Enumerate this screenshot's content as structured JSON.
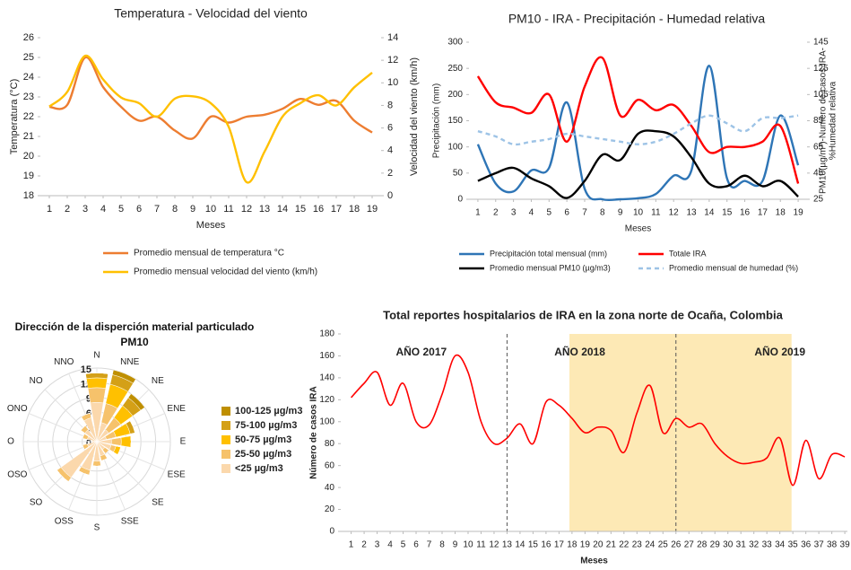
{
  "chart_data": [
    {
      "type": "line",
      "title": "Temperatura - Velocidad del viento",
      "xlabel": "Meses",
      "ylabel": "Temperatura (°C)",
      "y2label": [
        "Velocidad del viento (km/h)"
      ],
      "x": [
        1,
        2,
        3,
        4,
        5,
        6,
        7,
        8,
        9,
        10,
        11,
        12,
        13,
        14,
        15,
        16,
        17,
        18,
        19
      ],
      "xlim": [
        0.5,
        19.5
      ],
      "xticks": [
        1,
        2,
        3,
        4,
        5,
        6,
        7,
        8,
        9,
        10,
        11,
        12,
        13,
        14,
        15,
        16,
        17,
        18,
        19
      ],
      "ylim": [
        18,
        26
      ],
      "yticks": [
        18,
        19,
        20,
        21,
        22,
        23,
        24,
        25,
        26
      ],
      "y2lim": [
        0,
        14
      ],
      "y2ticks": [
        0,
        2,
        4,
        6,
        8,
        10,
        12,
        14
      ],
      "legend": "bottom",
      "series": [
        {
          "name": "Promedio mensual de temperatura °C",
          "color": "#ed7d31",
          "values": [
            22.5,
            22.6,
            25.0,
            23.5,
            22.5,
            21.8,
            22.0,
            21.3,
            20.9,
            22.0,
            21.7,
            22.0,
            22.1,
            22.4,
            22.9,
            22.6,
            22.8,
            21.8,
            21.2
          ]
        },
        {
          "name": "Promedio mensual velocidad del viento  (km/h)",
          "color": "#ffc000",
          "axis": "y2",
          "values": [
            7.9,
            9.2,
            12.4,
            10.3,
            8.7,
            8.2,
            7.0,
            8.6,
            8.8,
            8.2,
            6.1,
            1.2,
            3.9,
            7.0,
            8.2,
            8.9,
            8.0,
            9.6,
            10.9
          ]
        }
      ]
    },
    {
      "type": "line",
      "title": "PM10 - IRA - Precipitación - Humedad relativa",
      "xlabel": "Meses",
      "ylabel": "Precipitación (mm)",
      "y2label": [
        "PM10(µg/m³)-Numero de casos IRA-",
        "%Humedad relativa"
      ],
      "x": [
        1,
        2,
        3,
        4,
        5,
        6,
        7,
        8,
        9,
        10,
        11,
        12,
        13,
        14,
        15,
        16,
        17,
        18,
        19
      ],
      "xlim": [
        0.5,
        19.5
      ],
      "xticks": [
        1,
        2,
        3,
        4,
        5,
        6,
        7,
        8,
        9,
        10,
        11,
        12,
        13,
        14,
        15,
        16,
        17,
        18,
        19
      ],
      "ylim": [
        0,
        300
      ],
      "yticks": [
        0,
        50,
        100,
        150,
        200,
        250,
        300
      ],
      "y2lim": [
        25,
        145
      ],
      "y2ticks": [
        25,
        45,
        65,
        85,
        105,
        125,
        145
      ],
      "legend": "bottom",
      "series": [
        {
          "name": "Precipitación total mensual (mm)",
          "color": "#2e75b6",
          "values": [
            105,
            30,
            15,
            55,
            60,
            185,
            20,
            0,
            0,
            2,
            10,
            45,
            55,
            255,
            40,
            35,
            35,
            160,
            65
          ]
        },
        {
          "name": "Totale IRA",
          "color": "#ff0000",
          "axis": "y2",
          "values": [
            119,
            99,
            95,
            91,
            105,
            69,
            111,
            133,
            89,
            101,
            93,
            97,
            81,
            61,
            65,
            65,
            69,
            81,
            37
          ]
        },
        {
          "name": "Promedio mensual PM10 (µg/m3)",
          "color": "#000000",
          "axis": "y2",
          "values": [
            39,
            45,
            49,
            41,
            35,
            26,
            39,
            59,
            55,
            75,
            77,
            73,
            57,
            37,
            35,
            43,
            35,
            39,
            27
          ]
        },
        {
          "name": "Promedio mensual de humedad (%)",
          "color": "#9dc3e6",
          "axis": "y2",
          "dashed": true,
          "values": [
            77,
            73,
            67,
            69,
            71,
            75,
            73,
            71,
            69,
            67,
            69,
            75,
            83,
            89,
            83,
            77,
            87,
            87,
            89
          ]
        }
      ]
    },
    {
      "type": "rose",
      "title": "Dirección de la disperción material particulado PM10",
      "categories": [
        "N",
        "NNE",
        "NE",
        "ENE",
        "E",
        "ESE",
        "SE",
        "SSE",
        "S",
        "OSS",
        "SO",
        "OSO",
        "O",
        "ONO",
        "NO",
        "NNO"
      ],
      "rlim": [
        0,
        15
      ],
      "rticks": [
        0,
        3,
        6,
        9,
        12,
        15
      ],
      "legend": "right",
      "series": [
        {
          "name": "100-125 µg/m3",
          "color": "#bf8f00",
          "values": [
            0,
            1,
            1,
            0,
            0,
            0,
            0,
            0,
            0,
            0,
            0,
            0,
            0,
            0,
            0,
            0
          ]
        },
        {
          "name": "75-100 µg/m3",
          "color": "#d4a017",
          "values": [
            1,
            2,
            2,
            1,
            0,
            0,
            0,
            0,
            0,
            0,
            0,
            0,
            0,
            0,
            0,
            0
          ]
        },
        {
          "name": "50-75 µg/m3",
          "color": "#ffc000",
          "values": [
            2,
            4,
            3,
            3,
            2,
            1,
            0,
            0,
            0,
            0,
            0,
            0,
            0,
            0,
            0,
            0
          ]
        },
        {
          "name": "25-50 µg/m3",
          "color": "#f6c26b",
          "values": [
            3,
            4,
            3,
            2,
            2,
            1,
            1,
            1,
            1,
            1,
            1,
            1,
            0,
            1,
            1,
            1
          ]
        },
        {
          "name": "<25 µg/m3",
          "color": "#fbd8ac",
          "values": [
            8,
            4,
            3,
            2,
            3,
            3,
            2,
            3,
            4,
            6,
            9,
            2,
            1,
            2,
            3,
            5
          ]
        }
      ]
    },
    {
      "type": "line",
      "title": "Total reportes hospitalarios de IRA en la zona norte de Ocaña, Colombia",
      "xlabel": "Meses",
      "ylabel": "Número de casos IRA",
      "x": [
        1,
        2,
        3,
        4,
        5,
        6,
        7,
        8,
        9,
        10,
        11,
        12,
        13,
        14,
        15,
        16,
        17,
        18,
        19,
        20,
        21,
        22,
        23,
        24,
        25,
        26,
        27,
        28,
        29,
        30,
        31,
        32,
        33,
        34,
        35,
        36,
        37,
        38,
        39
      ],
      "xlim": [
        0.2,
        39.2
      ],
      "xticks": [
        1,
        2,
        3,
        4,
        5,
        6,
        7,
        8,
        9,
        10,
        11,
        12,
        13,
        14,
        15,
        16,
        17,
        18,
        19,
        20,
        21,
        22,
        23,
        24,
        25,
        26,
        27,
        28,
        29,
        30,
        31,
        32,
        33,
        34,
        35,
        36,
        37,
        38,
        39
      ],
      "ylim": [
        0,
        180
      ],
      "yticks": [
        0,
        20,
        40,
        60,
        80,
        100,
        120,
        140,
        160,
        180
      ],
      "year_dividers": [
        13,
        26
      ],
      "highlight_range": [
        17.8,
        34.9
      ],
      "annotations": [
        {
          "text": "AÑO 2017",
          "x": 6.4,
          "y": 163
        },
        {
          "text": "AÑO 2018",
          "x": 18.6,
          "y": 163
        },
        {
          "text": "AÑO 2019",
          "x": 34,
          "y": 163
        }
      ],
      "series": [
        {
          "name": null,
          "color": "#ff0000",
          "values": [
            122,
            135,
            145,
            115,
            135,
            100,
            97,
            125,
            160,
            145,
            100,
            80,
            85,
            98,
            80,
            118,
            115,
            103,
            90,
            95,
            92,
            72,
            108,
            133,
            90,
            103,
            95,
            98,
            80,
            68,
            62,
            63,
            67,
            85,
            42,
            83,
            48,
            70,
            68
          ]
        }
      ]
    }
  ]
}
